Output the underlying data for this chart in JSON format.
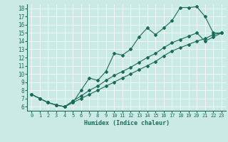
{
  "xlabel": "Humidex (Indice chaleur)",
  "background_color": "#cceae4",
  "line_color": "#1a6b5a",
  "xlim": [
    -0.5,
    23.5
  ],
  "ylim": [
    5.5,
    18.5
  ],
  "xticks": [
    0,
    1,
    2,
    3,
    4,
    5,
    6,
    7,
    8,
    9,
    10,
    11,
    12,
    13,
    14,
    15,
    16,
    17,
    18,
    19,
    20,
    21,
    22,
    23
  ],
  "yticks": [
    6,
    7,
    8,
    9,
    10,
    11,
    12,
    13,
    14,
    15,
    16,
    17,
    18
  ],
  "x_top": [
    0,
    1,
    2,
    3,
    4,
    5,
    6,
    7,
    8,
    9,
    10,
    11,
    12,
    13,
    14,
    15,
    16,
    17,
    18,
    19,
    20,
    21,
    22,
    23
  ],
  "y_top": [
    7.5,
    7.0,
    6.5,
    6.2,
    6.0,
    6.5,
    8.0,
    9.5,
    9.2,
    10.3,
    12.5,
    12.3,
    13.0,
    14.5,
    15.6,
    14.8,
    15.6,
    16.5,
    18.1,
    18.1,
    18.2,
    17.0,
    15.0,
    15.0
  ],
  "x_line1": [
    0,
    1,
    2,
    3,
    4,
    5,
    6,
    7,
    8,
    9,
    10,
    11,
    12,
    13,
    14,
    15,
    16,
    17,
    18,
    19,
    20,
    21,
    22,
    23
  ],
  "y_line1": [
    7.5,
    7.0,
    6.5,
    6.2,
    6.0,
    6.5,
    7.0,
    7.5,
    8.0,
    8.5,
    9.0,
    9.5,
    10.0,
    10.5,
    11.0,
    11.5,
    12.2,
    12.8,
    13.2,
    13.6,
    14.0,
    14.3,
    14.8,
    15.0
  ],
  "x_line2": [
    0,
    1,
    2,
    3,
    4,
    5,
    6,
    7,
    8,
    9,
    10,
    11,
    12,
    13,
    14,
    15,
    16,
    17,
    18,
    19,
    20,
    21,
    22,
    23
  ],
  "y_line2": [
    7.5,
    7.0,
    6.5,
    6.2,
    6.0,
    6.7,
    7.3,
    8.0,
    8.5,
    9.2,
    9.8,
    10.3,
    10.8,
    11.4,
    12.0,
    12.5,
    13.2,
    13.8,
    14.2,
    14.6,
    15.0,
    14.0,
    14.5,
    15.0
  ]
}
